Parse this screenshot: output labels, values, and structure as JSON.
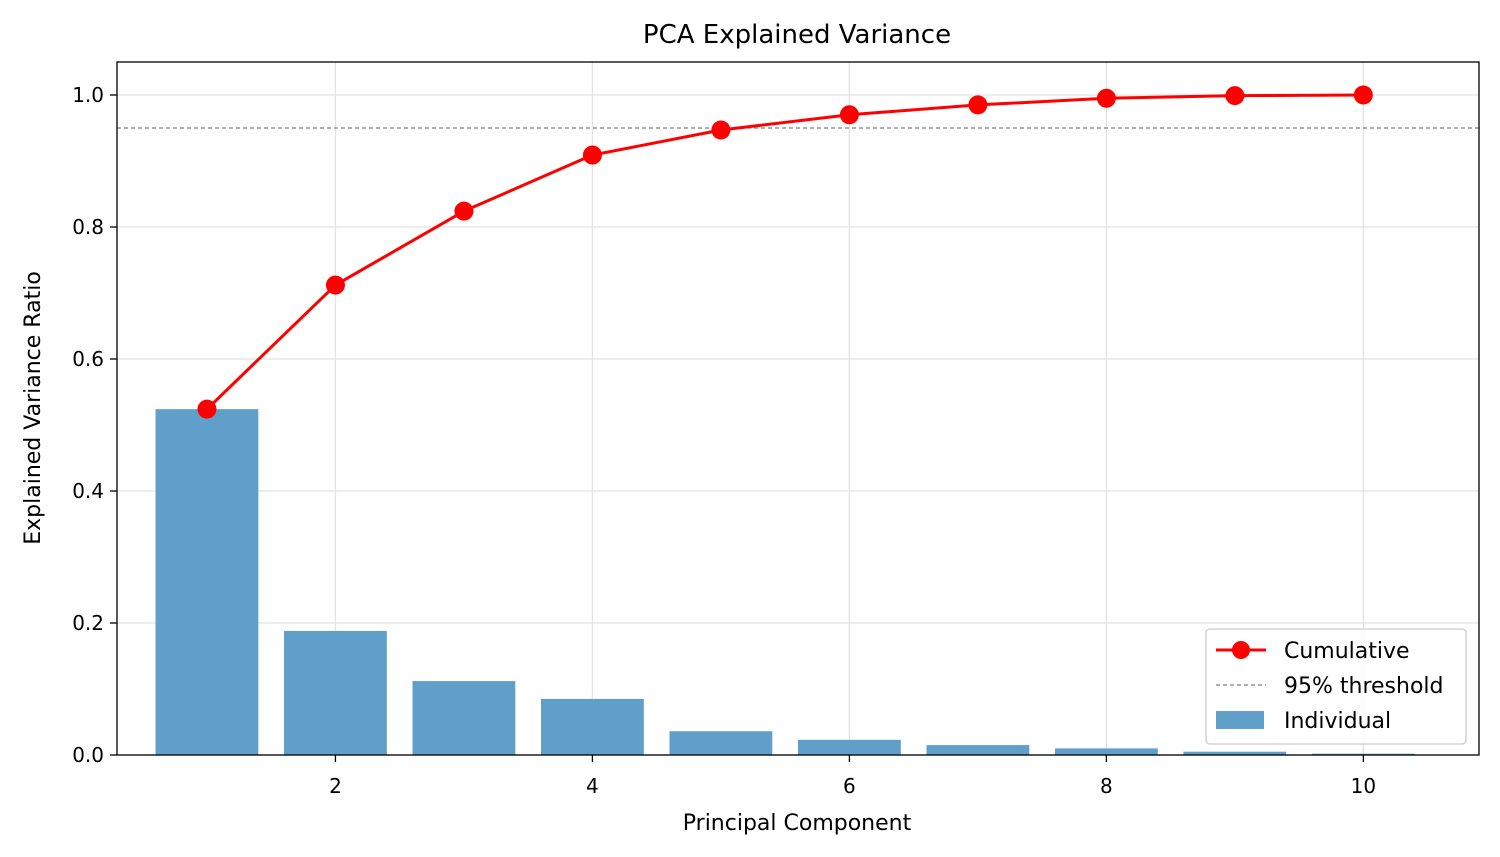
{
  "chart_data": {
    "type": "bar",
    "title": "PCA Explained Variance",
    "xlabel": "Principal Component",
    "ylabel": "Explained Variance Ratio",
    "xlim": [
      0.3,
      10.9
    ],
    "ylim": [
      0.0,
      1.05
    ],
    "xticks": [
      2,
      4,
      6,
      8,
      10
    ],
    "yticks": [
      0.0,
      0.2,
      0.4,
      0.6,
      0.8,
      1.0
    ],
    "xtick_labels": [
      "2",
      "4",
      "6",
      "8",
      "10"
    ],
    "ytick_labels": [
      "0.0",
      "0.2",
      "0.4",
      "0.6",
      "0.8",
      "1.0"
    ],
    "grid": true,
    "legend_position": "lower-right",
    "x": [
      1,
      2,
      3,
      4,
      5,
      6,
      7,
      8,
      9,
      10
    ],
    "series": [
      {
        "name": "Individual",
        "kind": "bar",
        "color": "#5f9fca",
        "values": [
          0.524,
          0.188,
          0.112,
          0.085,
          0.036,
          0.023,
          0.015,
          0.01,
          0.005,
          0.002
        ]
      },
      {
        "name": "Cumulative",
        "kind": "line-marker",
        "color": "#ff0000",
        "values": [
          0.524,
          0.712,
          0.824,
          0.909,
          0.947,
          0.97,
          0.985,
          0.995,
          0.999,
          1.0
        ]
      }
    ],
    "threshold": {
      "name": "95% threshold",
      "value": 0.95,
      "color": "#808080",
      "style": "dashed"
    },
    "legend": [
      "Cumulative",
      "95% threshold",
      "Individual"
    ]
  }
}
